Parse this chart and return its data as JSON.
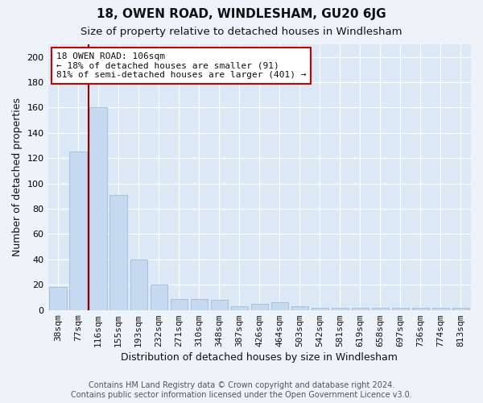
{
  "title": "18, OWEN ROAD, WINDLESHAM, GU20 6JG",
  "subtitle": "Size of property relative to detached houses in Windlesham",
  "xlabel": "Distribution of detached houses by size in Windlesham",
  "ylabel": "Number of detached properties",
  "categories": [
    "38sqm",
    "77sqm",
    "116sqm",
    "155sqm",
    "193sqm",
    "232sqm",
    "271sqm",
    "310sqm",
    "348sqm",
    "387sqm",
    "426sqm",
    "464sqm",
    "503sqm",
    "542sqm",
    "581sqm",
    "619sqm",
    "658sqm",
    "697sqm",
    "736sqm",
    "774sqm",
    "813sqm"
  ],
  "values": [
    18,
    125,
    160,
    91,
    40,
    20,
    9,
    9,
    8,
    3,
    5,
    6,
    3,
    2,
    2,
    2,
    2,
    2,
    2,
    2,
    2
  ],
  "bar_color": "#c5d9f0",
  "bar_edge_color": "#9fbcd8",
  "vline_color": "#990000",
  "vline_x_index": 1.5,
  "annotation_text_line1": "18 OWEN ROAD: 106sqm",
  "annotation_text_line2": "← 18% of detached houses are smaller (91)",
  "annotation_text_line3": "81% of semi-detached houses are larger (401) →",
  "ylim": [
    0,
    210
  ],
  "yticks": [
    0,
    20,
    40,
    60,
    80,
    100,
    120,
    140,
    160,
    180,
    200
  ],
  "footer_line1": "Contains HM Land Registry data © Crown copyright and database right 2024.",
  "footer_line2": "Contains public sector information licensed under the Open Government Licence v3.0.",
  "background_color": "#eef2f9",
  "plot_background_color": "#dce8f5",
  "grid_color": "#ffffff",
  "title_fontsize": 11,
  "subtitle_fontsize": 9.5,
  "axis_label_fontsize": 9,
  "tick_fontsize": 8,
  "annotation_fontsize": 8,
  "footer_fontsize": 7
}
